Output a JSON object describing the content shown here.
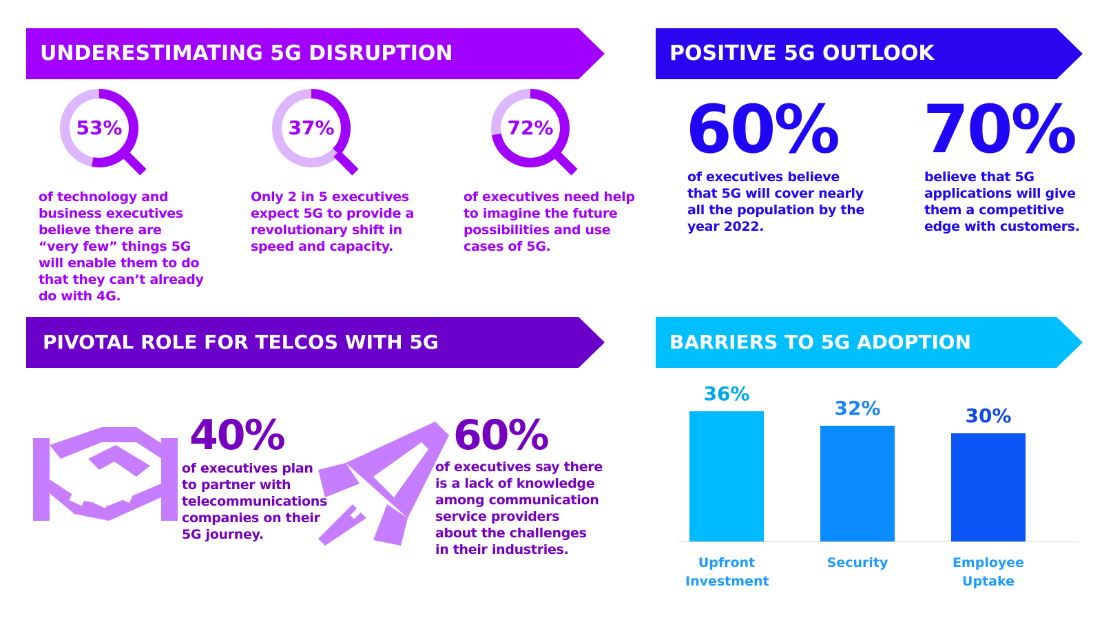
{
  "sections": {
    "disruption": {
      "title": "UNDERESTIMATING 5G DISRUPTION",
      "color": "#a100ff",
      "stats": [
        {
          "value": "53%",
          "fraction": 0.53,
          "text": "of technology and business executives believe there are “very few” things 5G will enable them to do that they can’t already do with 4G."
        },
        {
          "value": "37%",
          "fraction": 0.37,
          "text": "Only 2 in 5 executives expect 5G to provide a revolutionary shift in speed and capacity."
        },
        {
          "value": "72%",
          "fraction": 0.72,
          "text": "of executives need help to imagine the future possibilities and use cases of 5G."
        }
      ]
    },
    "outlook": {
      "title": "POSITIVE 5G OUTLOOK",
      "color": "#2a05f0",
      "stats": [
        {
          "value": "60%",
          "text": "of executives believe that 5G will cover nearly all the population by the year 2022."
        },
        {
          "value": "70%",
          "text": "believe that 5G applications will give them a competitive edge with customers."
        }
      ]
    },
    "telcos": {
      "title": "PIVOTAL ROLE FOR TELCOS WITH 5G",
      "color": "#6a00c9",
      "stats": [
        {
          "value": "40%",
          "icon": "handshake-icon",
          "text": "of executives plan to partner with telecommunications companies on their 5G journey."
        },
        {
          "value": "60%",
          "icon": "rocket-icon",
          "text": "of executives say there is a lack of knowledge among communication service providers about the challenges in their industries."
        }
      ]
    },
    "barriers": {
      "title": "BARRIERS TO 5G ADOPTION",
      "color": "#00bfff"
    }
  },
  "chart_data": {
    "type": "bar",
    "title": "BARRIERS TO 5G ADOPTION",
    "categories": [
      "Upfront Investment",
      "Security",
      "Employee Uptake"
    ],
    "values": [
      36,
      32,
      30
    ],
    "labels": [
      "36%",
      "32%",
      "30%"
    ],
    "colors": [
      "#00baff",
      "#0a8cff",
      "#0a55f5"
    ],
    "label_colors": [
      "#00a8f0",
      "#1a84f5",
      "#1048e8"
    ]
  }
}
